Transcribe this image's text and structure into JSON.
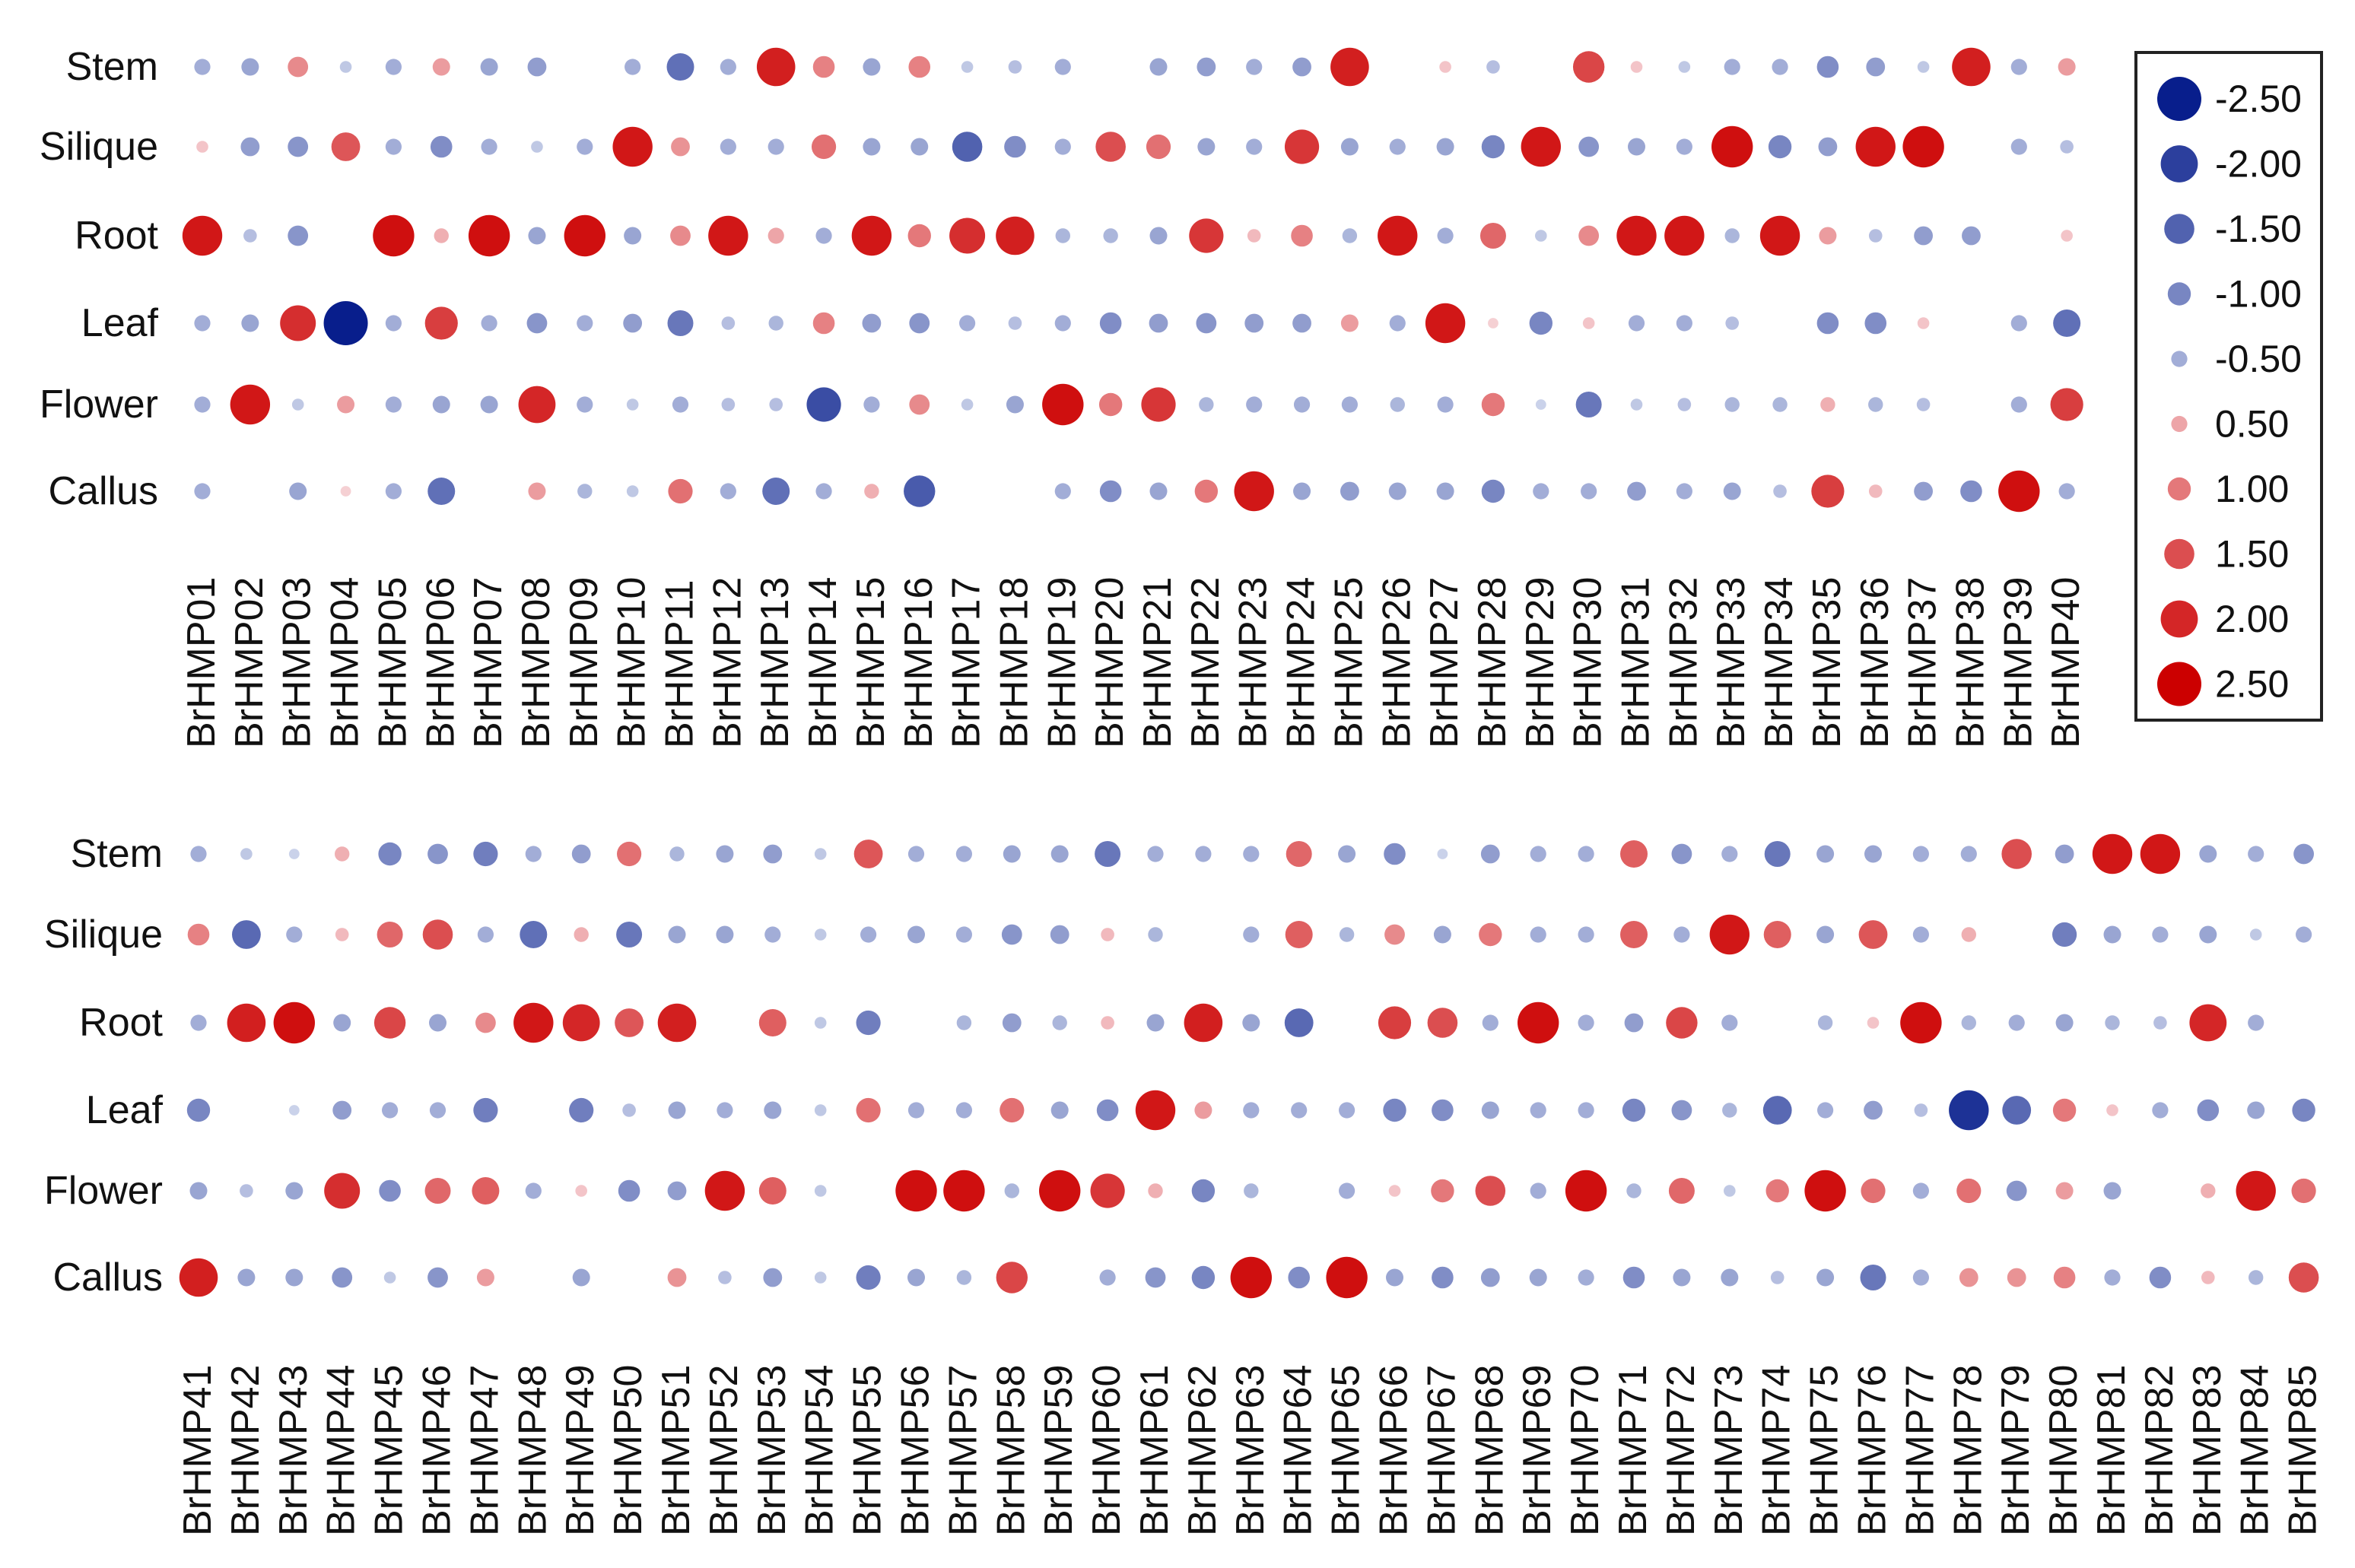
{
  "chart_data": [
    {
      "type": "bubble-heatmap",
      "rows": [
        "Stem",
        "Silique",
        "Root",
        "Leaf",
        "Flower",
        "Callus"
      ],
      "columns": [
        "BrHMP01",
        "BrHMP02",
        "BrHMP03",
        "BrHMP04",
        "BrHMP05",
        "BrHMP06",
        "BrHMP07",
        "BrHMP08",
        "BrHMP09",
        "BrHMP10",
        "BrHMP11",
        "BrHMP12",
        "BrHMP13",
        "BrHMP14",
        "BrHMP15",
        "BrHMP16",
        "BrHMP17",
        "BrHMP18",
        "BrHMP19",
        "BrHMP20",
        "BrHMP21",
        "BrHMP22",
        "BrHMP23",
        "BrHMP24",
        "BrHMP25",
        "BrHMP26",
        "BrHMP27",
        "BrHMP28",
        "BrHMP29",
        "BrHMP30",
        "BrHMP31",
        "BrHMP32",
        "BrHMP33",
        "BrHMP34",
        "BrHMP35",
        "BrHMP36",
        "BrHMP37",
        "BrHMP38",
        "BrHMP39",
        "BrHMP40"
      ],
      "values": [
        [
          -0.5,
          -0.6,
          0.8,
          -0.2,
          -0.5,
          0.6,
          -0.6,
          -0.7,
          0,
          -0.5,
          -1.3,
          -0.5,
          2.1,
          0.9,
          -0.6,
          0.9,
          -0.2,
          -0.3,
          -0.5,
          0,
          -0.6,
          -0.7,
          -0.5,
          -0.7,
          2.1,
          0,
          0.2,
          -0.3,
          0,
          1.6,
          0.2,
          -0.2,
          -0.5,
          -0.5,
          -0.9,
          -0.7,
          -0.2,
          2.1,
          -0.5,
          0.6
        ],
        [
          0.2,
          -0.7,
          -0.8,
          1.4,
          -0.5,
          -0.9,
          -0.5,
          -0.2,
          -0.5,
          2.2,
          0.7,
          -0.5,
          -0.5,
          1.1,
          -0.6,
          -0.6,
          -1.5,
          -0.9,
          -0.5,
          1.5,
          1.1,
          -0.6,
          -0.5,
          1.8,
          -0.6,
          -0.5,
          -0.6,
          -1.0,
          2.2,
          -0.8,
          -0.6,
          -0.5,
          2.3,
          -1.0,
          -0.7,
          2.2,
          2.3,
          0,
          -0.5,
          -0.3
        ],
        [
          2.2,
          -0.3,
          -0.8,
          0,
          2.3,
          0.4,
          2.3,
          -0.6,
          2.3,
          -0.6,
          0.8,
          2.2,
          0.5,
          -0.5,
          2.2,
          1.0,
          1.9,
          2.1,
          -0.4,
          -0.4,
          -0.6,
          1.8,
          0.3,
          0.9,
          -0.4,
          2.2,
          -0.5,
          1.2,
          -0.2,
          0.8,
          2.2,
          2.2,
          -0.4,
          2.2,
          0.6,
          -0.3,
          -0.7,
          -0.7,
          0,
          0.2
        ],
        [
          -0.5,
          -0.6,
          1.9,
          -2.5,
          -0.5,
          1.7,
          -0.5,
          -0.8,
          -0.5,
          -0.7,
          -1.2,
          -0.3,
          -0.4,
          0.9,
          -0.7,
          -0.8,
          -0.5,
          -0.3,
          -0.5,
          -0.9,
          -0.7,
          -0.8,
          -0.7,
          -0.7,
          0.6,
          -0.5,
          2.2,
          0.1,
          -1.0,
          0.2,
          -0.5,
          -0.5,
          -0.3,
          0,
          -0.9,
          -0.9,
          0.2,
          0,
          -0.5,
          -1.3
        ],
        [
          -0.5,
          2.2,
          -0.2,
          0.6,
          -0.5,
          -0.6,
          -0.6,
          2.0,
          -0.5,
          -0.2,
          -0.5,
          -0.3,
          -0.3,
          -1.8,
          -0.5,
          0.8,
          -0.2,
          -0.6,
          2.3,
          1.0,
          1.8,
          -0.4,
          -0.5,
          -0.5,
          -0.5,
          -0.4,
          -0.5,
          1.0,
          -0.1,
          -1.2,
          -0.2,
          -0.3,
          -0.4,
          -0.4,
          0.4,
          -0.4,
          -0.3,
          0,
          -0.5,
          1.7
        ],
        [
          -0.5,
          0,
          -0.6,
          0.1,
          -0.5,
          -1.3,
          0,
          0.6,
          -0.4,
          -0.2,
          1.1,
          -0.5,
          -1.3,
          -0.5,
          0.4,
          -1.6,
          0,
          0,
          -0.5,
          -0.9,
          -0.6,
          1.0,
          2.2,
          -0.6,
          -0.7,
          -0.6,
          -0.6,
          -1.0,
          -0.5,
          -0.5,
          -0.7,
          -0.5,
          -0.6,
          -0.3,
          1.7,
          0.3,
          -0.7,
          -0.9,
          2.3,
          -0.5
        ]
      ]
    },
    {
      "type": "bubble-heatmap",
      "rows": [
        "Stem",
        "Silique",
        "Root",
        "Leaf",
        "Flower",
        "Callus"
      ],
      "columns": [
        "BrHMP41",
        "BrHMP42",
        "BrHMP43",
        "BrHMP44",
        "BrHMP45",
        "BrHMP46",
        "BrHMP47",
        "BrHMP48",
        "BrHMP49",
        "BrHMP50",
        "BrHMP51",
        "BrHMP52",
        "BrHMP53",
        "BrHMP54",
        "BrHMP55",
        "BrHMP56",
        "BrHMP57",
        "BrHMP58",
        "BrHMP59",
        "BrHMP60",
        "BrHMP61",
        "BrHMP62",
        "BrHMP63",
        "BrHMP64",
        "BrHMP65",
        "BrHMP66",
        "BrHMP67",
        "BrHMP68",
        "BrHMP69",
        "BrHMP70",
        "BrHMP71",
        "BrHMP72",
        "BrHMP73",
        "BrHMP74",
        "BrHMP75",
        "BrHMP76",
        "BrHMP77",
        "BrHMP78",
        "BrHMP79",
        "BrHMP80",
        "BrHMP81",
        "BrHMP82",
        "BrHMP83",
        "BrHMP84",
        "BrHMP85"
      ],
      "values": [
        [
          -0.5,
          -0.2,
          -0.1,
          0.4,
          -1.0,
          -0.8,
          -1.1,
          -0.5,
          -0.7,
          1.1,
          -0.4,
          -0.6,
          -0.7,
          -0.2,
          1.4,
          -0.5,
          -0.5,
          -0.6,
          -0.6,
          -1.2,
          -0.5,
          -0.5,
          -0.5,
          1.2,
          -0.6,
          -0.9,
          -0.1,
          -0.7,
          -0.5,
          -0.5,
          1.3,
          -0.8,
          -0.5,
          -1.2,
          -0.6,
          -0.6,
          -0.5,
          -0.5,
          1.5,
          -0.7,
          2.2,
          2.2,
          -0.6,
          -0.5,
          -0.8
        ],
        [
          0.9,
          -1.4,
          -0.5,
          0.3,
          1.2,
          1.5,
          -0.5,
          -1.3,
          0.4,
          -1.2,
          -0.6,
          -0.6,
          -0.5,
          -0.2,
          -0.5,
          -0.6,
          -0.5,
          -0.8,
          -0.7,
          0.3,
          -0.4,
          0,
          -0.5,
          1.3,
          -0.4,
          0.8,
          -0.6,
          1.0,
          -0.5,
          -0.5,
          1.3,
          -0.5,
          2.2,
          1.3,
          -0.6,
          1.4,
          -0.5,
          0.4,
          0,
          -1.1,
          -0.6,
          -0.5,
          -0.6,
          -0.2,
          -0.5
        ],
        [
          -0.5,
          2.1,
          2.3,
          -0.6,
          1.6,
          -0.6,
          0.8,
          2.2,
          2.0,
          1.4,
          2.1,
          0,
          1.3,
          -0.2,
          -1.1,
          0,
          -0.4,
          -0.7,
          -0.4,
          0.3,
          -0.6,
          2.1,
          -0.6,
          -1.4,
          0,
          1.7,
          1.5,
          -0.5,
          2.3,
          -0.5,
          -0.7,
          1.6,
          -0.5,
          0,
          -0.4,
          0.2,
          2.3,
          -0.4,
          -0.5,
          -0.6,
          -0.4,
          -0.3,
          2.0,
          -0.5,
          0
        ],
        [
          -1.0,
          0,
          -0.1,
          -0.7,
          -0.5,
          -0.5,
          -1.1,
          0,
          -1.1,
          -0.3,
          -0.6,
          -0.5,
          -0.6,
          -0.2,
          1.1,
          -0.5,
          -0.5,
          1.1,
          -0.6,
          -0.9,
          2.2,
          0.6,
          -0.5,
          -0.5,
          -0.5,
          -1.0,
          -0.9,
          -0.6,
          -0.5,
          -0.5,
          -1.0,
          -0.8,
          -0.4,
          -1.4,
          -0.5,
          -0.7,
          -0.3,
          -2.2,
          -1.4,
          1.0,
          0.2,
          -0.5,
          -0.9,
          -0.6,
          -1.0
        ],
        [
          -0.6,
          -0.3,
          -0.6,
          1.9,
          -0.9,
          1.2,
          1.3,
          -0.5,
          0.2,
          -0.9,
          -0.7,
          2.2,
          1.3,
          -0.2,
          0,
          2.3,
          2.3,
          -0.4,
          2.3,
          1.8,
          0.4,
          -1.0,
          -0.4,
          0,
          -0.5,
          0.2,
          1.0,
          1.5,
          -0.5,
          2.3,
          -0.4,
          1.2,
          -0.2,
          1.0,
          2.3,
          1.1,
          -0.5,
          1.1,
          -0.8,
          0.6,
          -0.6,
          0,
          0.4,
          2.2,
          1.1
        ],
        [
          2.1,
          -0.6,
          -0.6,
          -0.8,
          -0.2,
          -0.8,
          0.6,
          0,
          -0.6,
          0,
          0.7,
          -0.3,
          -0.7,
          -0.2,
          -1.1,
          -0.6,
          -0.4,
          1.6,
          0,
          -0.5,
          -0.8,
          -1.0,
          2.3,
          -0.9,
          2.3,
          -0.6,
          -0.9,
          -0.7,
          -0.6,
          -0.5,
          -0.9,
          -0.6,
          -0.6,
          -0.3,
          -0.6,
          -1.2,
          -0.5,
          0.7,
          0.7,
          0.9,
          -0.5,
          -0.9,
          0.3,
          -0.4,
          1.5
        ]
      ]
    }
  ],
  "legend": {
    "items": [
      "-2.50",
      "-2.00",
      "-1.50",
      "-1.00",
      "-0.50",
      "0.50",
      "1.00",
      "1.50",
      "2.00",
      "2.50"
    ],
    "values": [
      -2.5,
      -2.0,
      -1.5,
      -1.0,
      -0.5,
      0.5,
      1.0,
      1.5,
      2.0,
      2.5
    ]
  }
}
